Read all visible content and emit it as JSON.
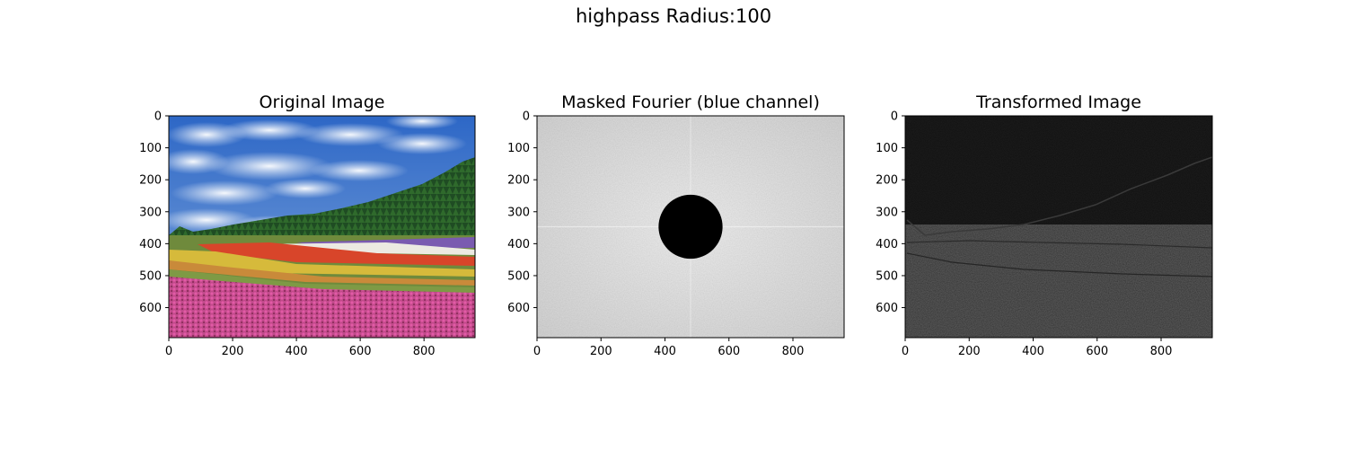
{
  "figure": {
    "suptitle": "highpass Radius:100"
  },
  "chart_data": [
    {
      "type": "image",
      "title": "Original Image",
      "content": "photo of a flower field with rows of pink, yellow, red, white and purple flowers, a line of trees and a blue sky with clouds",
      "xlabel": "",
      "ylabel": "",
      "xlim": [
        0,
        960
      ],
      "ylim": [
        694,
        0
      ],
      "xticks": [
        0,
        200,
        400,
        600,
        800
      ],
      "yticks": [
        0,
        100,
        200,
        300,
        400,
        500,
        600
      ],
      "grid": false
    },
    {
      "type": "image",
      "title": "Masked Fourier (blue channel)",
      "content": "grey log-magnitude spectrum with a black disk (the masked low frequencies) at the center",
      "mask_center": [
        480,
        347
      ],
      "mask_radius": 100,
      "xlabel": "",
      "ylabel": "",
      "xlim": [
        0,
        960
      ],
      "ylim": [
        694,
        0
      ],
      "xticks": [
        0,
        200,
        400,
        600,
        800
      ],
      "yticks": [
        0,
        100,
        200,
        300,
        400,
        500,
        600
      ],
      "grid": false
    },
    {
      "type": "image",
      "title": "Transformed Image",
      "content": "nearly black high-pass filtered version of the photo; faint edges of the tree line and flower rows are visible",
      "xlabel": "",
      "ylabel": "",
      "xlim": [
        0,
        960
      ],
      "ylim": [
        694,
        0
      ],
      "xticks": [
        0,
        200,
        400,
        600,
        800
      ],
      "yticks": [
        0,
        100,
        200,
        300,
        400,
        500,
        600
      ],
      "grid": false
    }
  ]
}
